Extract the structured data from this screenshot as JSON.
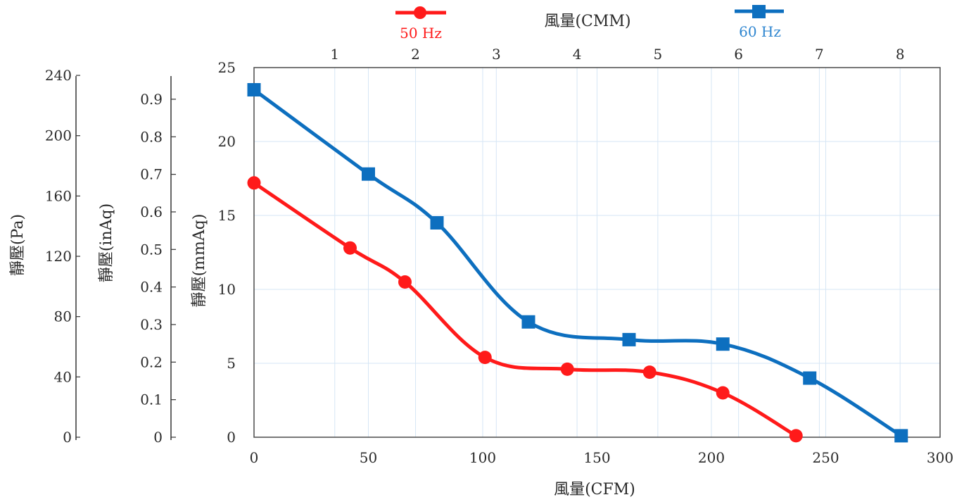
{
  "chart_data": {
    "type": "line",
    "x": {
      "label": "風量(CFM)",
      "range": [
        0,
        300
      ],
      "ticks": [
        0,
        50,
        100,
        150,
        200,
        250,
        300
      ]
    },
    "x_top": {
      "label": "風量(CMM)",
      "ticks": [
        1,
        2,
        3,
        4,
        5,
        6,
        7,
        8
      ]
    },
    "y": {
      "label": "靜壓(mmAq)",
      "range": [
        0,
        25
      ],
      "ticks": [
        0,
        5,
        10,
        15,
        20,
        25
      ]
    },
    "y_inaq": {
      "label": "靜壓(inAq)",
      "ticks": [
        "0",
        "0.1",
        "0.2",
        "0.3",
        "0.4",
        "0.5",
        "0.6",
        "0.7",
        "0.8",
        "0.9"
      ]
    },
    "y_pa": {
      "label": "靜壓(Pa)",
      "ticks": [
        "0",
        "40",
        "80",
        "120",
        "160",
        "200",
        "240"
      ]
    },
    "grid": true,
    "legend_position": "top",
    "series": [
      {
        "name": "50 Hz",
        "color": "#ff1a1a",
        "marker": "circle",
        "points": [
          [
            0,
            17.2
          ],
          [
            42,
            12.8
          ],
          [
            66,
            10.5
          ],
          [
            101,
            5.4
          ],
          [
            137,
            4.6
          ],
          [
            173,
            4.4
          ],
          [
            205,
            3.0
          ],
          [
            237,
            0.1
          ]
        ]
      },
      {
        "name": "60 Hz",
        "color": "#0d6fbf",
        "marker": "square",
        "points": [
          [
            0,
            23.5
          ],
          [
            50,
            17.8
          ],
          [
            80,
            14.5
          ],
          [
            120,
            7.8
          ],
          [
            164,
            6.6
          ],
          [
            205,
            6.3
          ],
          [
            243,
            4.0
          ],
          [
            283,
            0.1
          ]
        ]
      }
    ]
  }
}
